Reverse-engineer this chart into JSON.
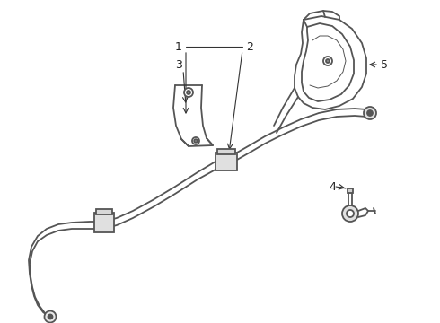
{
  "background_color": "#ffffff",
  "line_color": "#555555",
  "line_width": 1.3,
  "annotation_color": "#222222",
  "arrow_color": "#333333",
  "part1_label": "1",
  "part2_label": "2",
  "part3_label": "3",
  "part4_label": "4",
  "part5_label": "5"
}
